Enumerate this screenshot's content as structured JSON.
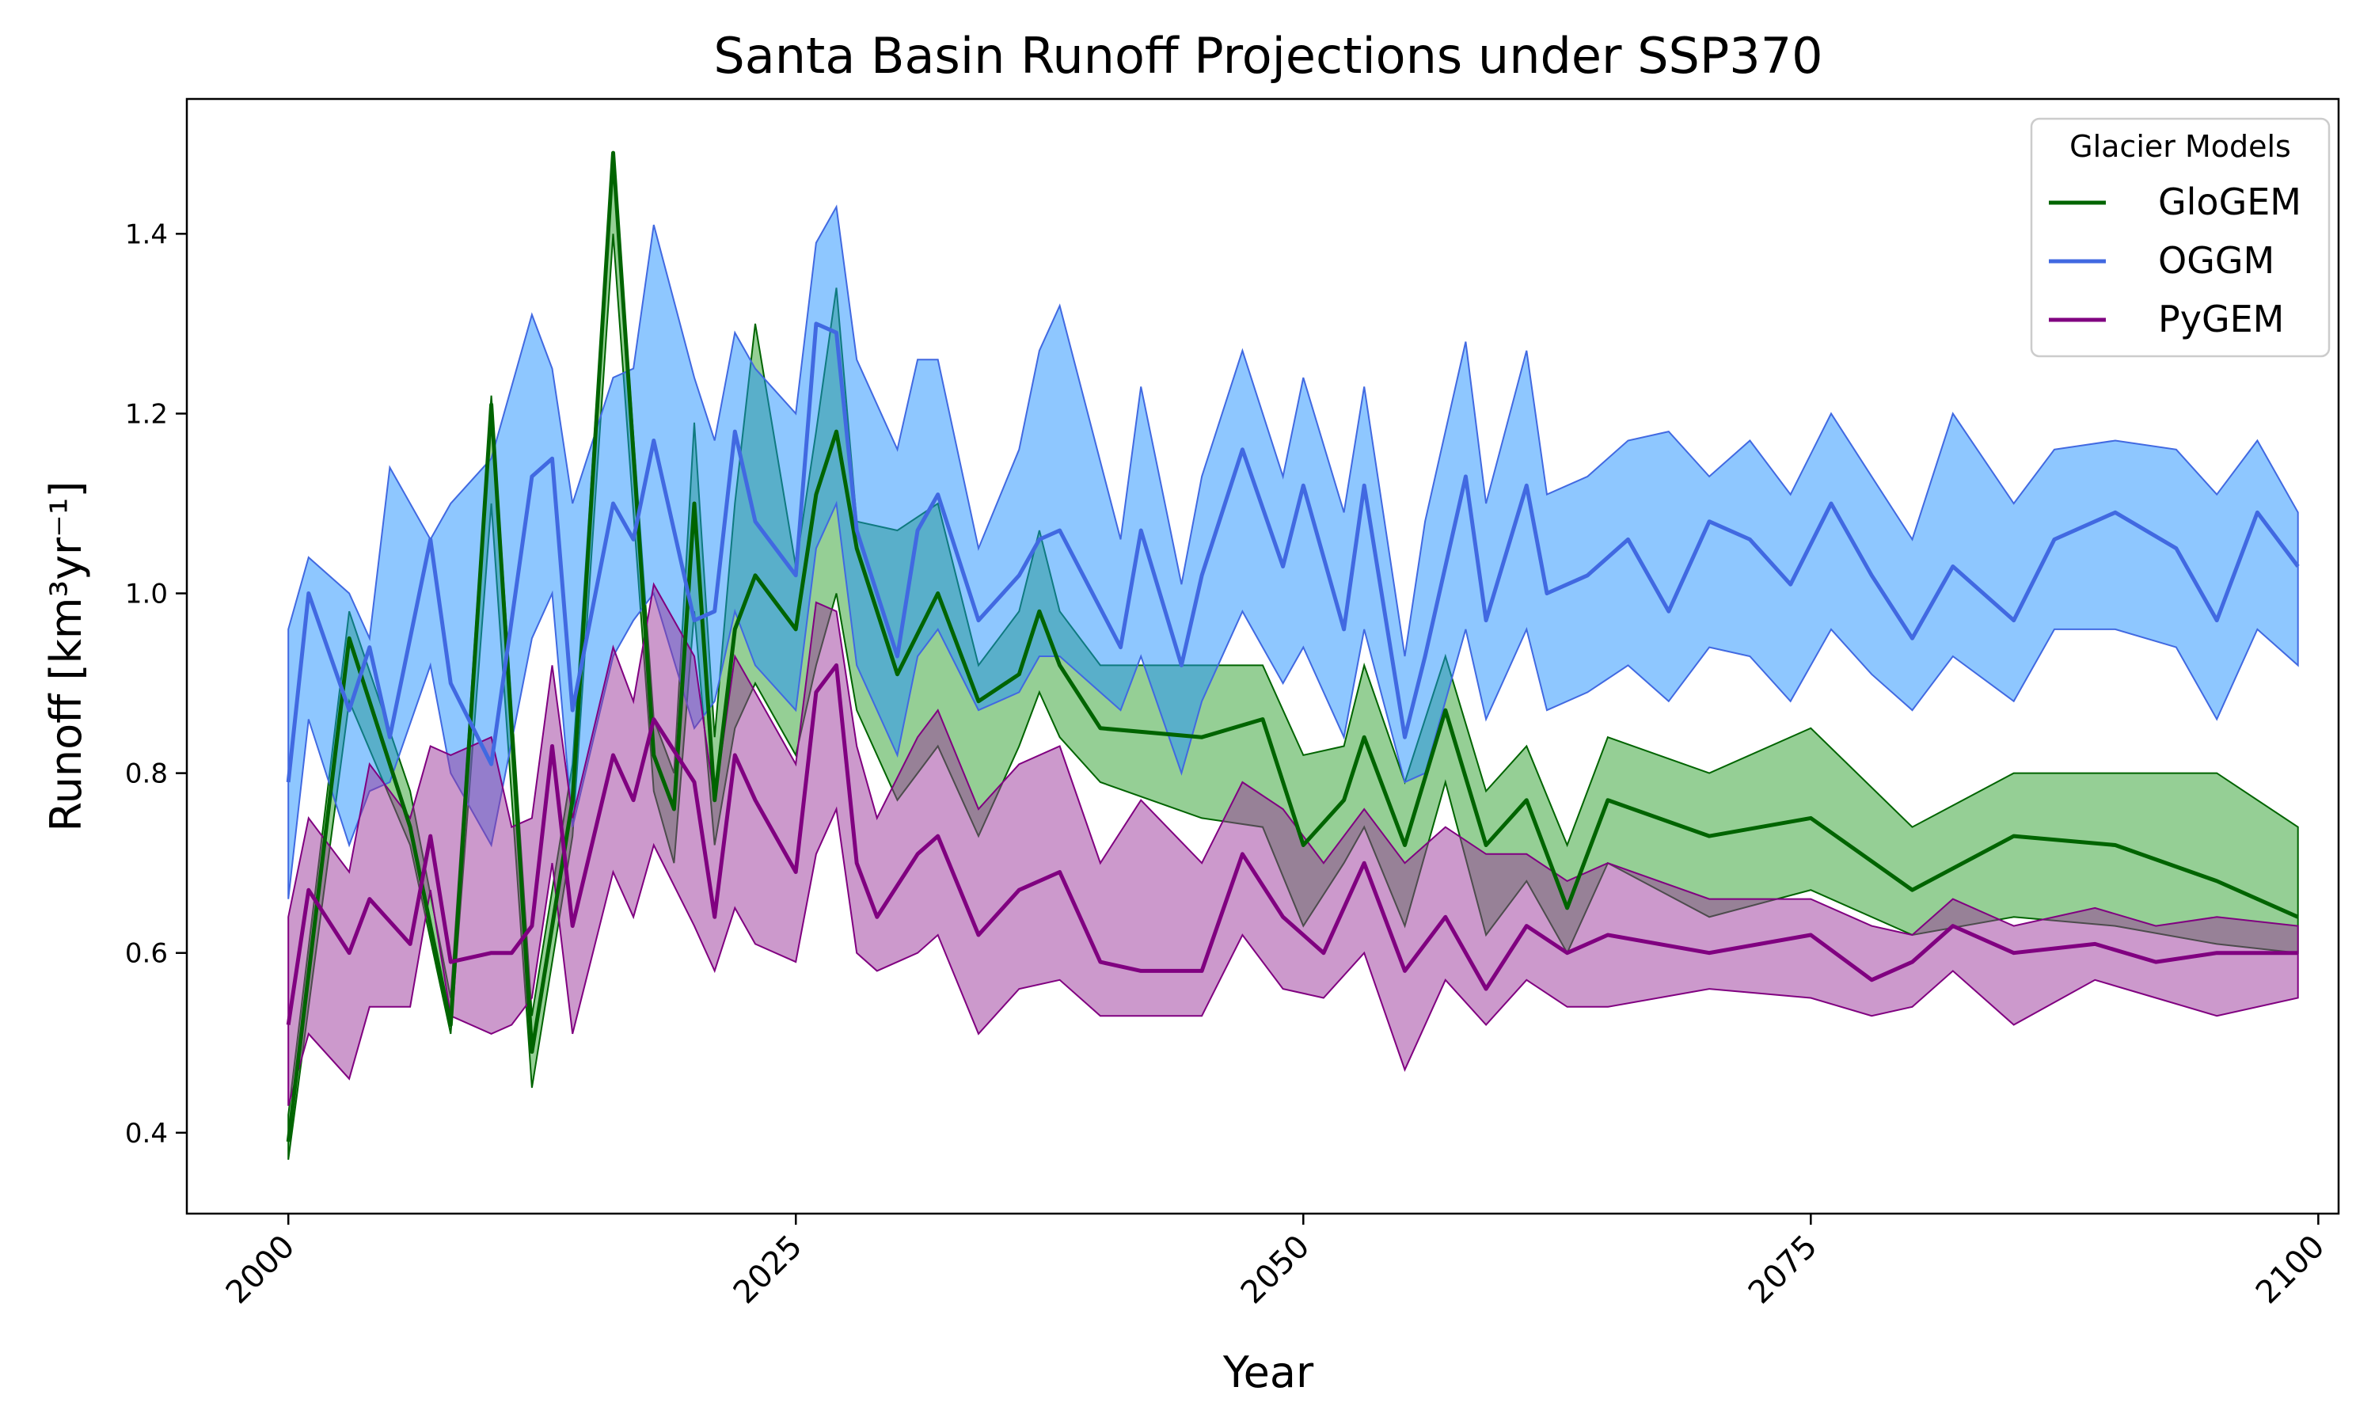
{
  "chart_data": {
    "type": "line",
    "title": "Santa Basin Runoff Projections under SSP370",
    "xlabel": "Year",
    "ylabel": "Runoff [km³yr⁻¹]",
    "xlim": [
      1995,
      2101
    ],
    "ylim": [
      0.31,
      1.55
    ],
    "xticks": [
      2000,
      2025,
      2050,
      2075,
      2100
    ],
    "yticks": [
      0.4,
      0.6,
      0.8,
      1.0,
      1.2,
      1.4
    ],
    "grid": false,
    "legend": {
      "title": "Glacier Models",
      "position": "top-right"
    },
    "series": [
      {
        "name": "GloGEM",
        "color": "#006400",
        "fill_color": "#2ca02c",
        "x": [
          2000,
          2003,
          2006,
          2008,
          2010,
          2012,
          2014,
          2016,
          2018,
          2019,
          2020,
          2021,
          2022,
          2023,
          2025,
          2026,
          2027,
          2028,
          2030,
          2032,
          2034,
          2036,
          2037,
          2038,
          2040,
          2045,
          2048,
          2050,
          2052,
          2053,
          2055,
          2057,
          2059,
          2061,
          2063,
          2065,
          2070,
          2075,
          2080,
          2085,
          2090,
          2095,
          2099
        ],
        "y": [
          0.39,
          0.95,
          0.74,
          0.52,
          1.21,
          0.49,
          0.77,
          1.49,
          0.82,
          0.76,
          1.1,
          0.77,
          0.96,
          1.02,
          0.96,
          1.11,
          1.18,
          1.05,
          0.91,
          1.0,
          0.88,
          0.91,
          0.98,
          0.92,
          0.85,
          0.84,
          0.86,
          0.72,
          0.77,
          0.84,
          0.72,
          0.87,
          0.72,
          0.77,
          0.65,
          0.77,
          0.73,
          0.75,
          0.67,
          0.73,
          0.72,
          0.68,
          0.64
        ],
        "lower": [
          0.37,
          0.88,
          0.72,
          0.51,
          1.1,
          0.45,
          0.73,
          1.4,
          0.78,
          0.7,
          0.98,
          0.72,
          0.85,
          0.9,
          0.82,
          0.92,
          1.0,
          0.87,
          0.77,
          0.83,
          0.73,
          0.83,
          0.89,
          0.84,
          0.79,
          0.75,
          0.74,
          0.63,
          0.7,
          0.74,
          0.63,
          0.79,
          0.62,
          0.68,
          0.6,
          0.7,
          0.64,
          0.67,
          0.62,
          0.64,
          0.63,
          0.61,
          0.6
        ],
        "upper": [
          0.42,
          0.98,
          0.78,
          0.55,
          1.22,
          0.53,
          0.81,
          1.49,
          0.86,
          0.8,
          1.19,
          0.84,
          1.1,
          1.3,
          1.03,
          1.18,
          1.34,
          1.08,
          1.07,
          1.1,
          0.92,
          0.98,
          1.07,
          0.98,
          0.92,
          0.92,
          0.92,
          0.82,
          0.83,
          0.92,
          0.79,
          0.93,
          0.78,
          0.83,
          0.72,
          0.84,
          0.8,
          0.85,
          0.74,
          0.8,
          0.8,
          0.8,
          0.74
        ]
      },
      {
        "name": "OGGM",
        "color": "#4169e1",
        "fill_color": "#1e90ff",
        "x": [
          2000,
          2001,
          2003,
          2004,
          2005,
          2007,
          2008,
          2010,
          2012,
          2013,
          2014,
          2016,
          2017,
          2018,
          2020,
          2021,
          2022,
          2023,
          2025,
          2026,
          2027,
          2028,
          2030,
          2031,
          2032,
          2034,
          2036,
          2037,
          2038,
          2041,
          2042,
          2044,
          2045,
          2047,
          2049,
          2050,
          2052,
          2053,
          2055,
          2056,
          2058,
          2059,
          2061,
          2062,
          2064,
          2066,
          2068,
          2070,
          2072,
          2074,
          2076,
          2078,
          2080,
          2082,
          2085,
          2087,
          2090,
          2093,
          2095,
          2097,
          2099
        ],
        "y": [
          0.79,
          1.0,
          0.87,
          0.94,
          0.84,
          1.06,
          0.9,
          0.81,
          1.13,
          1.15,
          0.87,
          1.1,
          1.06,
          1.17,
          0.97,
          0.98,
          1.18,
          1.08,
          1.02,
          1.3,
          1.29,
          1.07,
          0.93,
          1.07,
          1.11,
          0.97,
          1.02,
          1.06,
          1.07,
          0.94,
          1.07,
          0.92,
          1.02,
          1.16,
          1.03,
          1.12,
          0.96,
          1.12,
          0.84,
          0.93,
          1.13,
          0.97,
          1.12,
          1.0,
          1.02,
          1.06,
          0.98,
          1.08,
          1.06,
          1.01,
          1.1,
          1.02,
          0.95,
          1.03,
          0.97,
          1.06,
          1.09,
          1.05,
          0.97,
          1.09,
          1.03
        ],
        "lower": [
          0.66,
          0.86,
          0.72,
          0.78,
          0.79,
          0.92,
          0.8,
          0.72,
          0.95,
          1.0,
          0.74,
          0.93,
          0.97,
          1.0,
          0.85,
          0.88,
          0.98,
          0.92,
          0.87,
          1.05,
          1.1,
          0.92,
          0.82,
          0.93,
          0.96,
          0.87,
          0.89,
          0.93,
          0.93,
          0.87,
          0.93,
          0.8,
          0.88,
          0.98,
          0.9,
          0.94,
          0.84,
          0.96,
          0.79,
          0.8,
          0.96,
          0.86,
          0.96,
          0.87,
          0.89,
          0.92,
          0.88,
          0.94,
          0.93,
          0.88,
          0.96,
          0.91,
          0.87,
          0.93,
          0.88,
          0.96,
          0.96,
          0.94,
          0.86,
          0.96,
          0.92
        ],
        "upper": [
          0.96,
          1.04,
          1.0,
          0.95,
          1.14,
          1.06,
          1.1,
          1.15,
          1.31,
          1.25,
          1.1,
          1.24,
          1.25,
          1.41,
          1.24,
          1.17,
          1.29,
          1.25,
          1.2,
          1.39,
          1.43,
          1.26,
          1.16,
          1.26,
          1.26,
          1.05,
          1.16,
          1.27,
          1.32,
          1.06,
          1.23,
          1.01,
          1.13,
          1.27,
          1.13,
          1.24,
          1.09,
          1.23,
          0.93,
          1.08,
          1.28,
          1.1,
          1.27,
          1.11,
          1.13,
          1.17,
          1.18,
          1.13,
          1.17,
          1.11,
          1.2,
          1.13,
          1.06,
          1.2,
          1.1,
          1.16,
          1.17,
          1.16,
          1.11,
          1.17,
          1.09
        ]
      },
      {
        "name": "PyGEM",
        "color": "#800080",
        "fill_color": "#993399",
        "x": [
          2000,
          2001,
          2003,
          2004,
          2006,
          2007,
          2008,
          2010,
          2011,
          2012,
          2013,
          2014,
          2016,
          2017,
          2018,
          2020,
          2021,
          2022,
          2023,
          2025,
          2026,
          2027,
          2028,
          2029,
          2031,
          2032,
          2034,
          2036,
          2038,
          2040,
          2042,
          2045,
          2047,
          2049,
          2051,
          2053,
          2055,
          2057,
          2059,
          2061,
          2063,
          2065,
          2070,
          2075,
          2078,
          2080,
          2082,
          2085,
          2089,
          2092,
          2095,
          2099
        ],
        "y": [
          0.52,
          0.67,
          0.6,
          0.66,
          0.61,
          0.73,
          0.59,
          0.6,
          0.6,
          0.63,
          0.83,
          0.63,
          0.82,
          0.77,
          0.86,
          0.79,
          0.64,
          0.82,
          0.77,
          0.69,
          0.89,
          0.92,
          0.7,
          0.64,
          0.71,
          0.73,
          0.62,
          0.67,
          0.69,
          0.59,
          0.58,
          0.58,
          0.71,
          0.64,
          0.6,
          0.7,
          0.58,
          0.64,
          0.56,
          0.63,
          0.6,
          0.62,
          0.6,
          0.62,
          0.57,
          0.59,
          0.63,
          0.6,
          0.61,
          0.59,
          0.6,
          0.6
        ],
        "lower": [
          0.43,
          0.51,
          0.46,
          0.54,
          0.54,
          0.67,
          0.53,
          0.51,
          0.52,
          0.55,
          0.7,
          0.51,
          0.69,
          0.64,
          0.72,
          0.63,
          0.58,
          0.65,
          0.61,
          0.59,
          0.71,
          0.76,
          0.6,
          0.58,
          0.6,
          0.62,
          0.51,
          0.56,
          0.57,
          0.53,
          0.53,
          0.53,
          0.62,
          0.56,
          0.55,
          0.6,
          0.47,
          0.57,
          0.52,
          0.57,
          0.54,
          0.54,
          0.56,
          0.55,
          0.53,
          0.54,
          0.58,
          0.52,
          0.57,
          0.55,
          0.53,
          0.55
        ],
        "upper": [
          0.64,
          0.75,
          0.69,
          0.81,
          0.75,
          0.83,
          0.82,
          0.84,
          0.74,
          0.75,
          0.92,
          0.75,
          0.94,
          0.88,
          1.01,
          0.93,
          0.77,
          0.93,
          0.89,
          0.81,
          0.99,
          0.98,
          0.83,
          0.75,
          0.84,
          0.87,
          0.76,
          0.81,
          0.83,
          0.7,
          0.77,
          0.7,
          0.79,
          0.76,
          0.7,
          0.76,
          0.7,
          0.74,
          0.71,
          0.71,
          0.68,
          0.7,
          0.66,
          0.66,
          0.63,
          0.62,
          0.66,
          0.63,
          0.65,
          0.63,
          0.64,
          0.63
        ]
      }
    ]
  }
}
